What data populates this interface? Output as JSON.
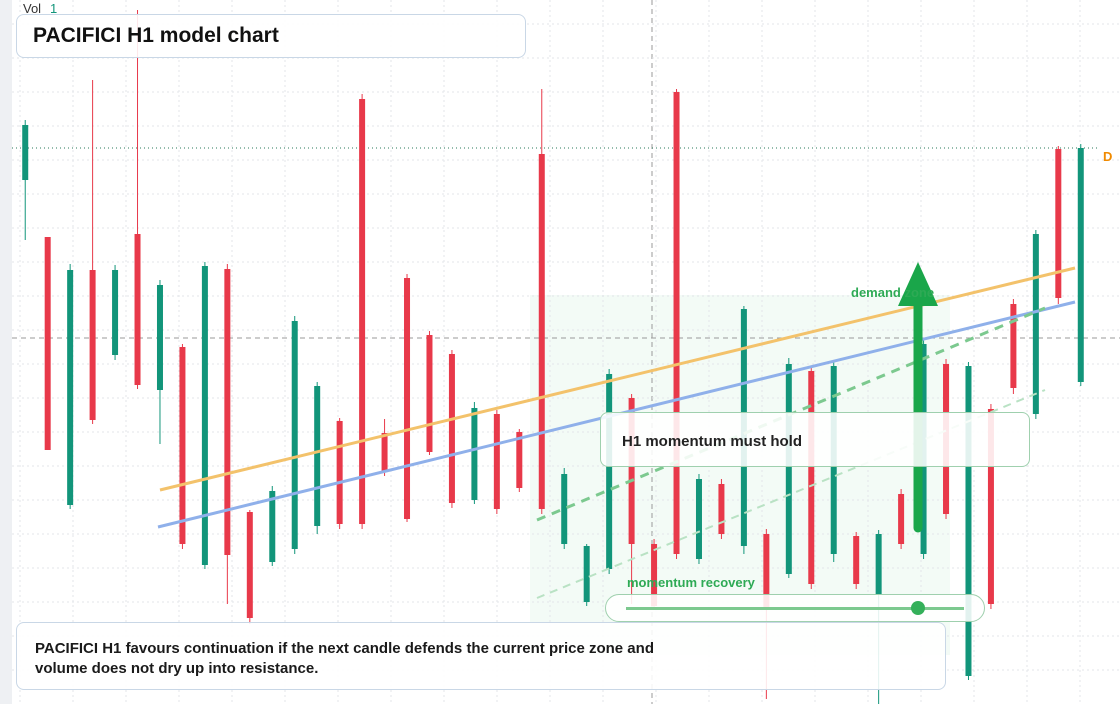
{
  "chart_data": {
    "type": "candlestick",
    "title": "PACIFICI H1 model chart",
    "volume_label": "Vol",
    "volume_value": "1",
    "price_flag": "D",
    "zone_label": "demand zone",
    "momentum_note": "H1 momentum must hold",
    "slider_label": "momentum recovery",
    "caption": "PACIFICI H1 favours continuation if the next candle defends the current price zone and volume does not dry up into resistance.",
    "up_color": "#12957a",
    "down_color": "#e8394a",
    "grid": true,
    "ylim": [
      0,
      704
    ],
    "open": [
      524,
      467,
      199,
      434,
      349,
      470,
      314,
      357,
      139,
      435,
      192,
      142,
      155,
      178,
      283,
      605,
      271,
      426,
      369,
      350,
      204,
      290,
      272,
      550,
      160,
      102,
      135,
      306,
      160,
      612,
      145,
      220,
      158,
      170,
      130,
      333,
      150,
      168,
      110,
      210,
      150,
      340,
      28,
      295,
      400,
      290,
      555,
      322
    ],
    "high": [
      584,
      467,
      440,
      624,
      439,
      694,
      424,
      360,
      442,
      440,
      194,
      218,
      388,
      322,
      286,
      610,
      285,
      430,
      373,
      354,
      302,
      294,
      275,
      615,
      236,
      160,
      335,
      310,
      165,
      615,
      230,
      225,
      398,
      175,
      346,
      337,
      342,
      172,
      174,
      215,
      364,
      345,
      342,
      300,
      405,
      474,
      558,
      560
    ],
    "low": [
      464,
      254,
      195,
      280,
      344,
      315,
      260,
      155,
      135,
      100,
      80,
      138,
      150,
      170,
      175,
      175,
      228,
      182,
      249,
      196,
      200,
      190,
      212,
      190,
      155,
      98,
      130,
      100,
      95,
      145,
      140,
      165,
      150,
      5,
      126,
      115,
      142,
      115,
      0,
      155,
      145,
      185,
      24,
      95,
      310,
      285,
      400,
      318
    ],
    "close": [
      579,
      254,
      434,
      284,
      434,
      319,
      419,
      160,
      438,
      149,
      86,
      213,
      383,
      318,
      180,
      180,
      232,
      185,
      252,
      201,
      296,
      195,
      216,
      195,
      230,
      158,
      330,
      160,
      98,
      150,
      225,
      170,
      395,
      95,
      340,
      120,
      338,
      120,
      170,
      160,
      360,
      190,
      338,
      100,
      316,
      470,
      406,
      556
    ]
  }
}
